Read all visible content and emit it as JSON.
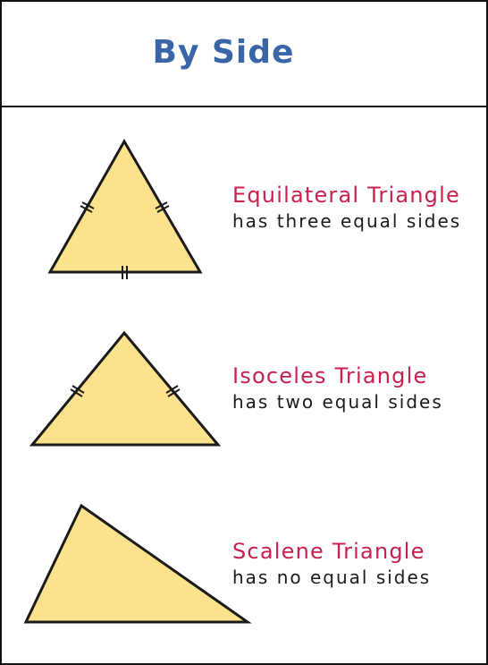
{
  "header": {
    "title": "By Side"
  },
  "colors": {
    "title": "#3a66a8",
    "name": "#c8204f",
    "description": "#1a1a1a",
    "triangle_fill": "#fde28e",
    "triangle_stroke": "#1a1a1a"
  },
  "triangles": [
    {
      "name": "Equilateral Triangle",
      "description": "has three equal sides",
      "equal_sides": 3
    },
    {
      "name": "Isoceles Triangle",
      "description": "has two equal sides",
      "equal_sides": 2
    },
    {
      "name": "Scalene Triangle",
      "description": "has no equal sides",
      "equal_sides": 0
    }
  ]
}
